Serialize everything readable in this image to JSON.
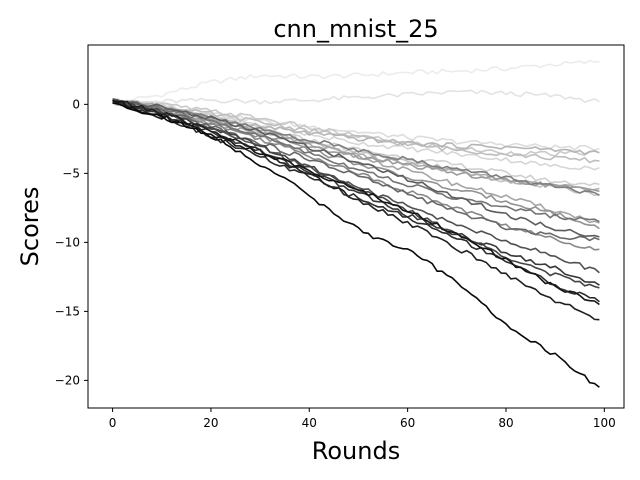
{
  "chart_data": {
    "type": "line",
    "title": "cnn_mnist_25",
    "xlabel": "Rounds",
    "ylabel": "Scores",
    "xlim": [
      -5,
      104
    ],
    "ylim": [
      -22,
      4.3
    ],
    "xticks": [
      0,
      20,
      40,
      60,
      80,
      100
    ],
    "yticks": [
      0,
      -5,
      -10,
      -15,
      -20
    ],
    "grid": false,
    "legend": "none",
    "series": [
      {
        "color": "#ececec",
        "points": [
          [
            0,
            0.1
          ],
          [
            10,
            0.7
          ],
          [
            20,
            1.6
          ],
          [
            30,
            2.1
          ],
          [
            40,
            2.0
          ],
          [
            50,
            2.1
          ],
          [
            60,
            2.3
          ],
          [
            70,
            2.4
          ],
          [
            80,
            2.6
          ],
          [
            90,
            2.9
          ],
          [
            99,
            3.1
          ]
        ]
      },
      {
        "color": "#e3e3e3",
        "points": [
          [
            0,
            0.1
          ],
          [
            10,
            0.2
          ],
          [
            20,
            0.3
          ],
          [
            30,
            0.2
          ],
          [
            40,
            0.3
          ],
          [
            50,
            0.5
          ],
          [
            60,
            0.7
          ],
          [
            70,
            0.9
          ],
          [
            80,
            0.8
          ],
          [
            90,
            0.6
          ],
          [
            99,
            0.2
          ]
        ]
      },
      {
        "color": "#dcdcdc",
        "points": [
          [
            0,
            0.2
          ],
          [
            10,
            0.0
          ],
          [
            20,
            -0.6
          ],
          [
            30,
            -1.2
          ],
          [
            40,
            -1.6
          ],
          [
            50,
            -2.0
          ],
          [
            60,
            -2.4
          ],
          [
            70,
            -2.7
          ],
          [
            80,
            -2.9
          ],
          [
            90,
            -3.1
          ],
          [
            99,
            -3.2
          ]
        ]
      },
      {
        "color": "#d6d6d6",
        "points": [
          [
            0,
            0.1
          ],
          [
            10,
            -0.2
          ],
          [
            20,
            -0.8
          ],
          [
            30,
            -1.5
          ],
          [
            40,
            -2.2
          ],
          [
            50,
            -2.8
          ],
          [
            60,
            -3.2
          ],
          [
            70,
            -3.6
          ],
          [
            80,
            -4.0
          ],
          [
            90,
            -4.5
          ],
          [
            99,
            -4.6
          ]
        ]
      },
      {
        "color": "#cfcfcf",
        "points": [
          [
            0,
            0.2
          ],
          [
            10,
            -0.1
          ],
          [
            20,
            -0.9
          ],
          [
            30,
            -1.8
          ],
          [
            40,
            -2.6
          ],
          [
            50,
            -3.3
          ],
          [
            60,
            -3.9
          ],
          [
            70,
            -4.4
          ],
          [
            80,
            -5.0
          ],
          [
            90,
            -5.6
          ],
          [
            99,
            -5.8
          ]
        ]
      },
      {
        "color": "#c9c9c9",
        "points": [
          [
            0,
            0.3
          ],
          [
            10,
            0.0
          ],
          [
            20,
            -0.5
          ],
          [
            30,
            -1.0
          ],
          [
            40,
            -1.7
          ],
          [
            50,
            -2.3
          ],
          [
            60,
            -2.8
          ],
          [
            70,
            -3.2
          ],
          [
            80,
            -3.5
          ],
          [
            90,
            -3.6
          ],
          [
            99,
            -3.5
          ]
        ]
      },
      {
        "color": "#c2c2c2",
        "points": [
          [
            0,
            0.1
          ],
          [
            10,
            -0.3
          ],
          [
            20,
            -1.0
          ],
          [
            30,
            -1.9
          ],
          [
            40,
            -2.7
          ],
          [
            50,
            -3.5
          ],
          [
            60,
            -4.1
          ],
          [
            70,
            -4.8
          ],
          [
            80,
            -5.5
          ],
          [
            90,
            -6.0
          ],
          [
            99,
            -6.5
          ]
        ]
      },
      {
        "color": "#bdbdbd",
        "points": [
          [
            0,
            0.2
          ],
          [
            10,
            -0.2
          ],
          [
            20,
            -0.7
          ],
          [
            30,
            -1.3
          ],
          [
            40,
            -1.9
          ],
          [
            50,
            -2.4
          ],
          [
            60,
            -2.9
          ],
          [
            70,
            -3.3
          ],
          [
            80,
            -3.6
          ],
          [
            90,
            -3.9
          ],
          [
            99,
            -4.1
          ]
        ]
      },
      {
        "color": "#b5b5b5",
        "points": [
          [
            0,
            0.1
          ],
          [
            10,
            -0.3
          ],
          [
            20,
            -1.0
          ],
          [
            30,
            -1.6
          ],
          [
            40,
            -2.1
          ],
          [
            50,
            -2.5
          ],
          [
            60,
            -2.8
          ],
          [
            70,
            -3.0
          ],
          [
            80,
            -3.1
          ],
          [
            90,
            -3.3
          ],
          [
            99,
            -3.5
          ]
        ]
      },
      {
        "color": "#adadad",
        "points": [
          [
            0,
            0.2
          ],
          [
            10,
            -0.3
          ],
          [
            20,
            -1.2
          ],
          [
            30,
            -2.1
          ],
          [
            40,
            -2.9
          ],
          [
            50,
            -3.7
          ],
          [
            60,
            -4.3
          ],
          [
            70,
            -4.9
          ],
          [
            80,
            -5.5
          ],
          [
            90,
            -5.9
          ],
          [
            99,
            -6.1
          ]
        ]
      },
      {
        "color": "#a5a5a5",
        "points": [
          [
            0,
            0.3
          ],
          [
            10,
            -0.2
          ],
          [
            20,
            -1.0
          ],
          [
            30,
            -1.9
          ],
          [
            40,
            -2.8
          ],
          [
            50,
            -3.8
          ],
          [
            60,
            -4.8
          ],
          [
            70,
            -5.8
          ],
          [
            80,
            -6.7
          ],
          [
            90,
            -7.7
          ],
          [
            99,
            -8.6
          ]
        ]
      },
      {
        "color": "#9c9c9c",
        "points": [
          [
            0,
            0.2
          ],
          [
            10,
            -0.4
          ],
          [
            20,
            -1.3
          ],
          [
            30,
            -2.2
          ],
          [
            40,
            -3.1
          ],
          [
            50,
            -3.8
          ],
          [
            60,
            -4.4
          ],
          [
            70,
            -5.0
          ],
          [
            80,
            -5.5
          ],
          [
            90,
            -5.9
          ],
          [
            99,
            -6.3
          ]
        ]
      },
      {
        "color": "#929292",
        "points": [
          [
            0,
            0.2
          ],
          [
            10,
            -0.4
          ],
          [
            20,
            -1.3
          ],
          [
            30,
            -2.3
          ],
          [
            40,
            -3.3
          ],
          [
            50,
            -4.3
          ],
          [
            60,
            -5.3
          ],
          [
            70,
            -6.2
          ],
          [
            80,
            -7.0
          ],
          [
            90,
            -7.9
          ],
          [
            99,
            -9.0
          ]
        ]
      },
      {
        "color": "#888888",
        "points": [
          [
            0,
            0.1
          ],
          [
            10,
            -0.5
          ],
          [
            20,
            -1.4
          ],
          [
            30,
            -2.5
          ],
          [
            40,
            -3.7
          ],
          [
            50,
            -5.0
          ],
          [
            60,
            -6.3
          ],
          [
            70,
            -7.5
          ],
          [
            80,
            -8.8
          ],
          [
            90,
            -9.8
          ],
          [
            99,
            -10.5
          ]
        ]
      },
      {
        "color": "#7e7e7e",
        "points": [
          [
            0,
            0.2
          ],
          [
            10,
            -0.3
          ],
          [
            20,
            -1.0
          ],
          [
            30,
            -1.8
          ],
          [
            40,
            -2.6
          ],
          [
            50,
            -3.3
          ],
          [
            60,
            -4.0
          ],
          [
            70,
            -4.7
          ],
          [
            80,
            -5.3
          ],
          [
            90,
            -6.0
          ],
          [
            99,
            -6.6
          ]
        ]
      },
      {
        "color": "#737373",
        "points": [
          [
            0,
            0.3
          ],
          [
            10,
            -0.3
          ],
          [
            20,
            -1.2
          ],
          [
            30,
            -2.3
          ],
          [
            40,
            -3.5
          ],
          [
            50,
            -4.7
          ],
          [
            60,
            -5.8
          ],
          [
            70,
            -6.8
          ],
          [
            80,
            -7.5
          ],
          [
            90,
            -8.1
          ],
          [
            99,
            -8.5
          ]
        ]
      },
      {
        "color": "#686868",
        "points": [
          [
            0,
            0.2
          ],
          [
            10,
            -0.5
          ],
          [
            20,
            -1.6
          ],
          [
            30,
            -2.8
          ],
          [
            40,
            -4.0
          ],
          [
            50,
            -5.2
          ],
          [
            60,
            -6.5
          ],
          [
            70,
            -7.8
          ],
          [
            80,
            -8.9
          ],
          [
            90,
            -9.5
          ],
          [
            99,
            -9.8
          ]
        ]
      },
      {
        "color": "#5c5c5c",
        "points": [
          [
            0,
            0.4
          ],
          [
            10,
            -0.2
          ],
          [
            20,
            -1.0
          ],
          [
            30,
            -2.0
          ],
          [
            40,
            -3.1
          ],
          [
            50,
            -4.2
          ],
          [
            60,
            -5.4
          ],
          [
            70,
            -6.7
          ],
          [
            80,
            -8.0
          ],
          [
            90,
            -9.0
          ],
          [
            99,
            -9.6
          ]
        ]
      },
      {
        "color": "#505050",
        "points": [
          [
            0,
            0.2
          ],
          [
            10,
            -0.6
          ],
          [
            20,
            -1.8
          ],
          [
            30,
            -3.1
          ],
          [
            40,
            -4.6
          ],
          [
            50,
            -6.0
          ],
          [
            60,
            -7.4
          ],
          [
            70,
            -8.7
          ],
          [
            80,
            -9.9
          ],
          [
            90,
            -11.0
          ],
          [
            99,
            -12.2
          ]
        ]
      },
      {
        "color": "#444444",
        "points": [
          [
            0,
            0.3
          ],
          [
            10,
            -0.5
          ],
          [
            20,
            -1.7
          ],
          [
            30,
            -3.0
          ],
          [
            40,
            -4.5
          ],
          [
            50,
            -6.1
          ],
          [
            60,
            -7.7
          ],
          [
            70,
            -9.4
          ],
          [
            80,
            -11.0
          ],
          [
            90,
            -12.4
          ],
          [
            99,
            -13.3
          ]
        ]
      },
      {
        "color": "#383838",
        "points": [
          [
            0,
            0.1
          ],
          [
            10,
            -0.7
          ],
          [
            20,
            -2.0
          ],
          [
            30,
            -3.4
          ],
          [
            40,
            -4.9
          ],
          [
            50,
            -6.4
          ],
          [
            60,
            -8.0
          ],
          [
            70,
            -9.4
          ],
          [
            80,
            -10.7
          ],
          [
            90,
            -11.9
          ],
          [
            99,
            -13.1
          ]
        ]
      },
      {
        "color": "#2c2c2c",
        "points": [
          [
            0,
            0.2
          ],
          [
            10,
            -0.8
          ],
          [
            20,
            -2.3
          ],
          [
            30,
            -3.8
          ],
          [
            40,
            -5.3
          ],
          [
            50,
            -6.8
          ],
          [
            60,
            -8.2
          ],
          [
            70,
            -9.7
          ],
          [
            80,
            -11.3
          ],
          [
            90,
            -13.1
          ],
          [
            99,
            -14.3
          ]
        ]
      },
      {
        "color": "#202020",
        "points": [
          [
            0,
            0.3
          ],
          [
            10,
            -0.6
          ],
          [
            20,
            -1.9
          ],
          [
            30,
            -3.4
          ],
          [
            40,
            -5.1
          ],
          [
            50,
            -6.9
          ],
          [
            60,
            -8.6
          ],
          [
            70,
            -10.4
          ],
          [
            80,
            -12.3
          ],
          [
            90,
            -14.2
          ],
          [
            99,
            -15.6
          ]
        ]
      },
      {
        "color": "#151515",
        "points": [
          [
            0,
            0.3
          ],
          [
            10,
            -0.9
          ],
          [
            20,
            -2.2
          ],
          [
            30,
            -3.5
          ],
          [
            40,
            -4.8
          ],
          [
            50,
            -6.2
          ],
          [
            60,
            -7.7
          ],
          [
            70,
            -9.4
          ],
          [
            80,
            -11.3
          ],
          [
            90,
            -13.2
          ],
          [
            99,
            -14.5
          ]
        ]
      },
      {
        "color": "#0a0a0a",
        "points": [
          [
            0,
            0.1
          ],
          [
            10,
            -0.9
          ],
          [
            20,
            -2.3
          ],
          [
            30,
            -4.3
          ],
          [
            40,
            -6.6
          ],
          [
            50,
            -9.1
          ],
          [
            60,
            -10.6
          ],
          [
            70,
            -12.8
          ],
          [
            80,
            -16.0
          ],
          [
            90,
            -18.2
          ],
          [
            99,
            -20.5
          ]
        ]
      }
    ]
  }
}
